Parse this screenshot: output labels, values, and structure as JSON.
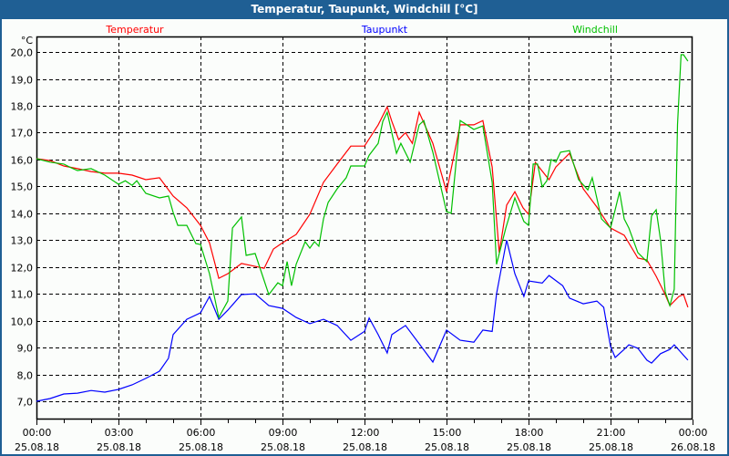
{
  "window": {
    "title": "Temperatur, Taupunkt, Windchill [°C]"
  },
  "chart_data": {
    "type": "line",
    "title": "Temperatur, Taupunkt, Windchill [°C]",
    "ylabel": "°C",
    "xlabel": "",
    "xlim_hours": [
      0,
      24
    ],
    "ylim": [
      6.32,
      20.58
    ],
    "grid": true,
    "legend_placement": "top",
    "yticks": [
      "7,0",
      "8,0",
      "9,0",
      "10,0",
      "11,0",
      "12,0",
      "13,0",
      "14,0",
      "15,0",
      "16,0",
      "17,0",
      "18,0",
      "19,0",
      "20,0"
    ],
    "ytick_values": [
      7,
      8,
      9,
      10,
      11,
      12,
      13,
      14,
      15,
      16,
      17,
      18,
      19,
      20
    ],
    "xticks": [
      {
        "time": "00:00",
        "date": "25.08.18"
      },
      {
        "time": "03:00",
        "date": "25.08.18"
      },
      {
        "time": "06:00",
        "date": "25.08.18"
      },
      {
        "time": "09:00",
        "date": "25.08.18"
      },
      {
        "time": "12:00",
        "date": "25.08.18"
      },
      {
        "time": "15:00",
        "date": "25.08.18"
      },
      {
        "time": "18:00",
        "date": "25.08.18"
      },
      {
        "time": "21:00",
        "date": "25.08.18"
      },
      {
        "time": "00:00",
        "date": "26.08.18"
      }
    ],
    "series": [
      {
        "name": "Temperatur",
        "color": "#ff0000",
        "x": [
          0,
          0.5,
          1,
          1.5,
          2,
          2.5,
          3,
          3.5,
          4,
          4.5,
          5,
          5.5,
          6,
          6.33,
          6.67,
          7,
          7.5,
          8,
          8.33,
          8.67,
          9,
          9.5,
          10,
          10.5,
          11,
          11.5,
          12,
          12.5,
          12.83,
          13,
          13.25,
          13.5,
          13.75,
          14,
          14.5,
          15,
          15.5,
          16,
          16.33,
          16.67,
          16.93,
          17.2,
          17.5,
          17.8,
          18,
          18.25,
          18.75,
          19,
          19.5,
          20,
          20.5,
          21,
          21.5,
          22,
          22.33,
          22.67,
          23,
          23.17,
          23.5,
          23.67,
          23.83
        ],
        "y": [
          16.03,
          15.96,
          15.76,
          15.66,
          15.55,
          15.49,
          15.49,
          15.42,
          15.25,
          15.32,
          14.64,
          14.2,
          13.55,
          12.9,
          11.58,
          11.75,
          12.13,
          12.02,
          11.95,
          12.67,
          12.9,
          13.21,
          13.96,
          15.15,
          15.83,
          16.5,
          16.5,
          17.29,
          17.96,
          17.42,
          16.74,
          17.0,
          16.6,
          17.76,
          16.6,
          14.8,
          17.29,
          17.29,
          17.45,
          15.72,
          12.53,
          14.3,
          14.8,
          14.2,
          13.96,
          15.89,
          15.25,
          15.72,
          16.23,
          14.91,
          14.23,
          13.45,
          13.18,
          12.33,
          12.26,
          11.65,
          10.97,
          10.56,
          10.9,
          10.97,
          10.5
        ]
      },
      {
        "name": "Taupunkt",
        "color": "#0000ff",
        "x": [
          0,
          0.5,
          1,
          1.5,
          2,
          2.5,
          3,
          3.5,
          4,
          4.5,
          4.83,
          5,
          5.5,
          6,
          6.33,
          6.67,
          7,
          7.5,
          8,
          8.5,
          9,
          9.5,
          10,
          10.5,
          11,
          11.5,
          12,
          12.17,
          12.5,
          12.83,
          13,
          13.5,
          14,
          14.5,
          15,
          15.5,
          16,
          16.33,
          16.67,
          16.83,
          17.2,
          17.5,
          17.83,
          18,
          18.5,
          18.75,
          19.25,
          19.5,
          20,
          20.5,
          20.75,
          21,
          21.17,
          21.5,
          21.67,
          22,
          22.33,
          22.5,
          22.83,
          23.17,
          23.33,
          23.83
        ],
        "y": [
          7.0,
          7.1,
          7.27,
          7.3,
          7.4,
          7.34,
          7.44,
          7.61,
          7.85,
          8.12,
          8.6,
          9.48,
          10.05,
          10.29,
          10.9,
          10.05,
          10.39,
          10.97,
          11.0,
          10.56,
          10.46,
          10.12,
          9.89,
          10.05,
          9.82,
          9.27,
          9.6,
          10.1,
          9.48,
          8.8,
          9.48,
          9.82,
          9.14,
          8.46,
          9.65,
          9.27,
          9.2,
          9.65,
          9.6,
          11.0,
          13.0,
          11.75,
          10.9,
          11.48,
          11.4,
          11.68,
          11.3,
          10.84,
          10.63,
          10.73,
          10.5,
          9.04,
          8.63,
          8.93,
          9.1,
          8.97,
          8.53,
          8.42,
          8.77,
          8.93,
          9.1,
          8.53
        ]
      },
      {
        "name": "Windchill",
        "color": "#00c000",
        "x": [
          0,
          0.5,
          1,
          1.25,
          1.5,
          2,
          2.5,
          3,
          3.25,
          3.5,
          3.67,
          4,
          4.5,
          4.83,
          5,
          5.17,
          5.5,
          5.83,
          6,
          6.33,
          6.67,
          7,
          7.17,
          7.5,
          7.67,
          8,
          8.5,
          8.83,
          9,
          9.17,
          9.33,
          9.5,
          9.83,
          10,
          10.17,
          10.33,
          10.5,
          10.67,
          11,
          11.33,
          11.5,
          12,
          12.17,
          12.5,
          12.67,
          12.83,
          13.17,
          13.33,
          13.67,
          14,
          14.17,
          14.5,
          15,
          15.17,
          15.5,
          16,
          16.33,
          16.67,
          16.83,
          17.17,
          17.5,
          17.83,
          18,
          18.17,
          18.33,
          18.5,
          18.67,
          18.83,
          19,
          19.17,
          19.5,
          19.83,
          20.17,
          20.33,
          20.67,
          21,
          21.17,
          21.33,
          21.5,
          21.67,
          22,
          22.33,
          22.5,
          22.67,
          22.83,
          23,
          23.17,
          23.33,
          23.45,
          23.58,
          23.67,
          23.83
        ],
        "y": [
          16.03,
          15.9,
          15.83,
          15.7,
          15.59,
          15.66,
          15.42,
          15.08,
          15.21,
          15.04,
          15.21,
          14.74,
          14.57,
          14.64,
          14.03,
          13.55,
          13.55,
          12.87,
          12.84,
          11.75,
          10.12,
          10.73,
          13.45,
          13.86,
          12.43,
          12.5,
          10.97,
          11.41,
          11.3,
          12.2,
          11.3,
          12.1,
          12.94,
          12.7,
          12.94,
          12.77,
          13.79,
          14.4,
          14.91,
          15.32,
          15.76,
          15.76,
          16.16,
          16.6,
          17.42,
          17.76,
          16.23,
          16.6,
          15.9,
          17.29,
          17.45,
          16.27,
          14.06,
          14.0,
          17.45,
          17.12,
          17.25,
          15.15,
          12.1,
          13.45,
          14.57,
          13.69,
          13.55,
          15.83,
          15.83,
          14.98,
          15.21,
          16.0,
          15.9,
          16.27,
          16.33,
          15.25,
          14.87,
          15.32,
          13.79,
          13.45,
          14.13,
          14.8,
          13.79,
          13.45,
          12.53,
          12.2,
          13.9,
          14.13,
          13.0,
          11.07,
          10.56,
          11.17,
          17.3,
          19.9,
          19.9,
          19.66
        ]
      }
    ]
  }
}
